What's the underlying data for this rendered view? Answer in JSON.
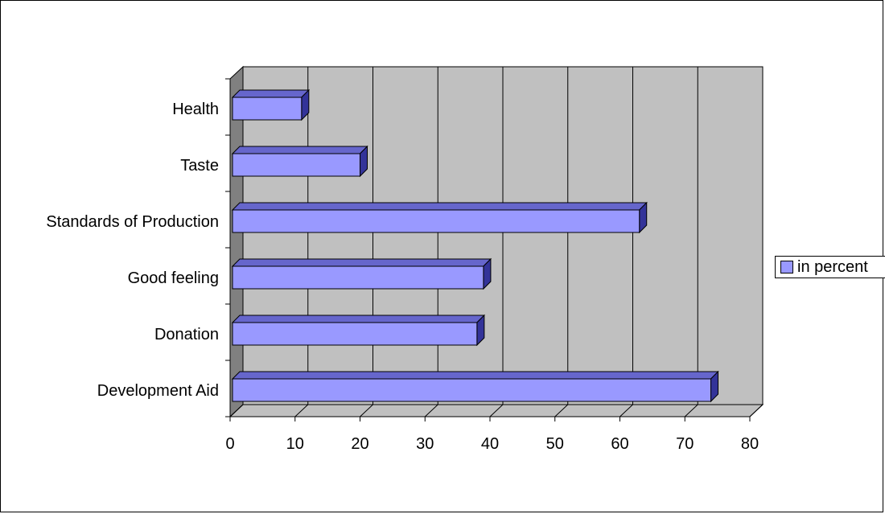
{
  "chart_data": {
    "type": "bar",
    "orientation": "horizontal",
    "style": "3d",
    "categories": [
      "Health",
      "Taste",
      "Standards of Production",
      "Good feeling",
      "Donation",
      "Development Aid"
    ],
    "series": [
      {
        "name": "in percent",
        "values": [
          11,
          20,
          63,
          39,
          38,
          74
        ],
        "color": "#9999ff"
      }
    ],
    "xlim": [
      0,
      80
    ],
    "xticks": [
      0,
      10,
      20,
      30,
      40,
      50,
      60,
      70,
      80
    ],
    "grid": "vertical",
    "legend_position": "right",
    "plot_background": "#c0c0c0"
  }
}
